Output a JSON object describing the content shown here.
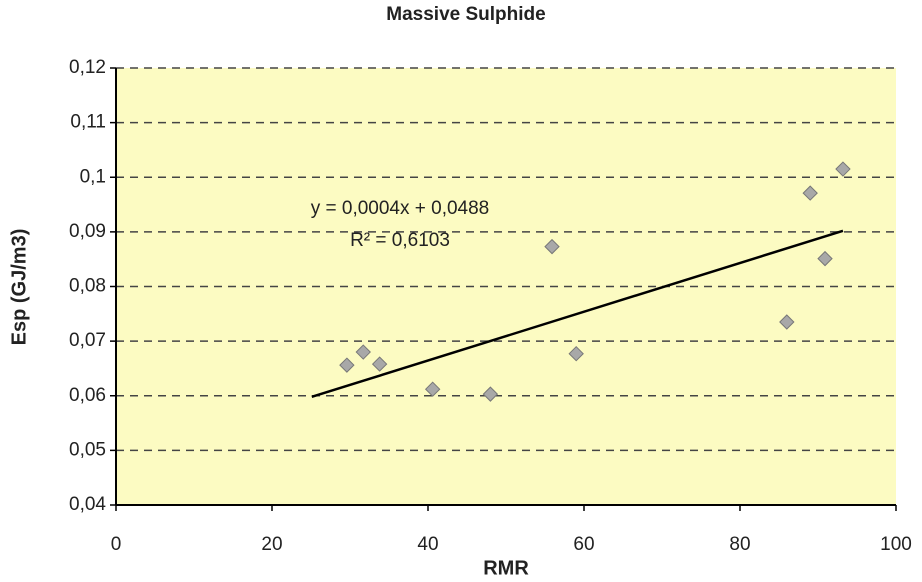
{
  "chart_data": {
    "type": "scatter",
    "title": "Massive Sulphide",
    "x_label": "RMR",
    "y_label": "Esp (GJ/m3)",
    "x": [
      29.6,
      31.7,
      33.8,
      40.6,
      48,
      55.9,
      59,
      86,
      89,
      90.9,
      93.2
    ],
    "values": [
      0.0656,
      0.068,
      0.0658,
      0.0612,
      0.0603,
      0.0873,
      0.0677,
      0.0735,
      0.0971,
      0.0851,
      0.1015
    ],
    "color": "#a8a8a8",
    "trendline": {
      "x": [
        25.1,
        93.2
      ],
      "values": [
        0.0598,
        0.0902
      ],
      "color": "#000000"
    },
    "annotations": [
      "y = 0,0004x + 0,0488",
      "R² = 0,6103"
    ],
    "xlim": [
      0,
      100
    ],
    "ylim": [
      0.04,
      0.12
    ],
    "xticks": [
      0,
      20,
      40,
      60,
      80,
      100
    ],
    "yticks": [
      {
        "value": 0.04,
        "label": "0,04"
      },
      {
        "value": 0.05,
        "label": "0,05"
      },
      {
        "value": 0.06,
        "label": "0,06"
      },
      {
        "value": 0.07,
        "label": "0,07"
      },
      {
        "value": 0.08,
        "label": "0,08"
      },
      {
        "value": 0.09,
        "label": "0,09"
      },
      {
        "value": 0.1,
        "label": "0,1"
      },
      {
        "value": 0.11,
        "label": "0,11"
      },
      {
        "value": 0.12,
        "label": "0,12"
      }
    ],
    "grid": true,
    "plot_background": "#fcfbc2"
  }
}
